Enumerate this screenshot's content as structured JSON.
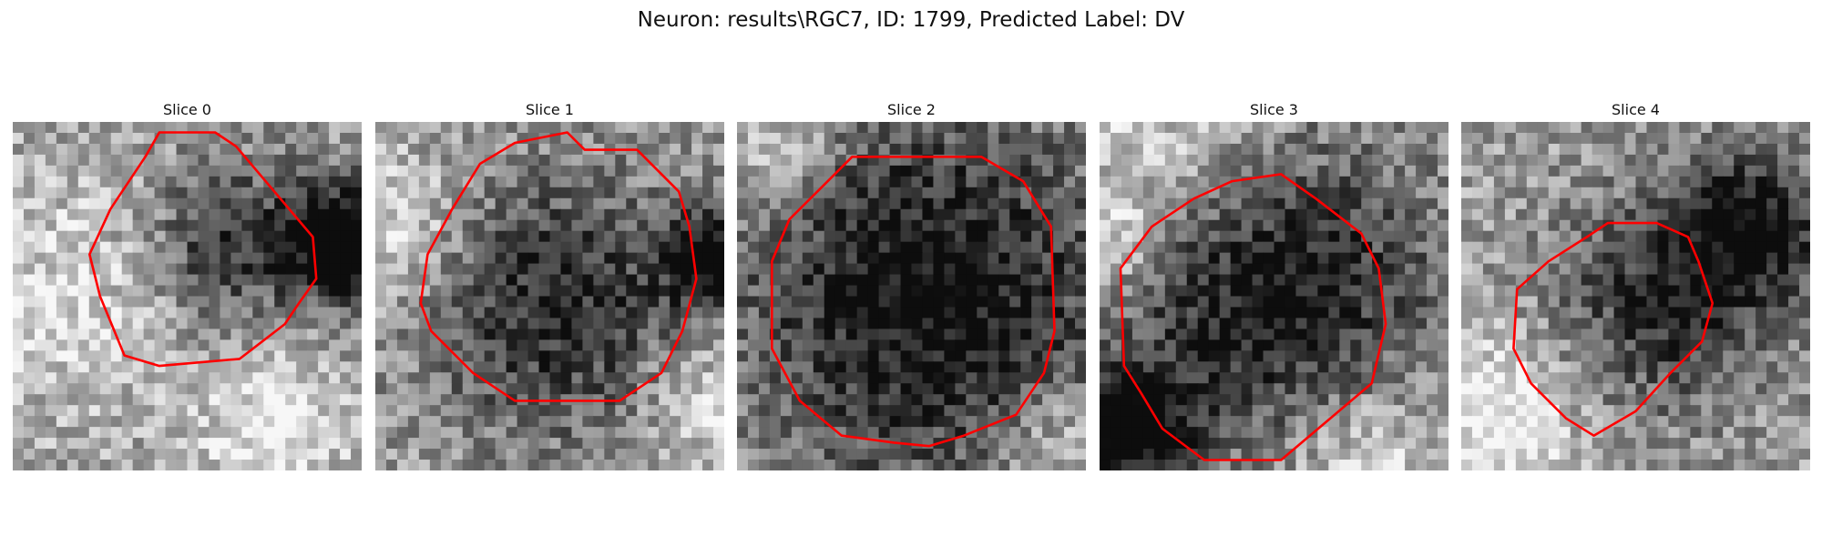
{
  "figure": {
    "title": "Neuron: results\\RGC7, ID: 1799, Predicted Label: DV",
    "contour_color": "#ff0000"
  },
  "slices": [
    {
      "title": "Slice 0",
      "seed": 11,
      "dark_spots": [
        [
          0.62,
          0.35,
          0.16,
          0.28
        ],
        [
          0.97,
          0.35,
          0.12,
          0.55
        ]
      ],
      "light_spots": [
        [
          0.15,
          0.5,
          0.25,
          0.25
        ],
        [
          0.75,
          0.88,
          0.15,
          0.35
        ]
      ],
      "contour": [
        [
          0.42,
          0.03
        ],
        [
          0.58,
          0.03
        ],
        [
          0.64,
          0.07
        ],
        [
          0.86,
          0.33
        ],
        [
          0.87,
          0.45
        ],
        [
          0.82,
          0.52
        ],
        [
          0.78,
          0.58
        ],
        [
          0.65,
          0.68
        ],
        [
          0.42,
          0.7
        ],
        [
          0.32,
          0.67
        ],
        [
          0.25,
          0.5
        ],
        [
          0.22,
          0.38
        ],
        [
          0.28,
          0.25
        ],
        [
          0.38,
          0.1
        ]
      ]
    },
    {
      "title": "Slice 1",
      "seed": 23,
      "dark_spots": [
        [
          0.52,
          0.53,
          0.26,
          0.3
        ],
        [
          0.97,
          0.4,
          0.1,
          0.4
        ]
      ],
      "light_spots": [
        [
          0.05,
          0.3,
          0.15,
          0.3
        ],
        [
          0.93,
          0.8,
          0.12,
          0.3
        ]
      ],
      "contour": [
        [
          0.4,
          0.06
        ],
        [
          0.55,
          0.03
        ],
        [
          0.6,
          0.08
        ],
        [
          0.75,
          0.08
        ],
        [
          0.87,
          0.2
        ],
        [
          0.9,
          0.3
        ],
        [
          0.92,
          0.45
        ],
        [
          0.88,
          0.6
        ],
        [
          0.82,
          0.72
        ],
        [
          0.7,
          0.8
        ],
        [
          0.4,
          0.8
        ],
        [
          0.28,
          0.72
        ],
        [
          0.16,
          0.6
        ],
        [
          0.13,
          0.52
        ],
        [
          0.15,
          0.38
        ],
        [
          0.22,
          0.25
        ],
        [
          0.3,
          0.12
        ]
      ]
    },
    {
      "title": "Slice 2",
      "seed": 37,
      "dark_spots": [
        [
          0.55,
          0.5,
          0.38,
          0.38
        ]
      ],
      "light_spots": [
        [
          0.1,
          0.05,
          0.15,
          0.3
        ],
        [
          0.92,
          0.92,
          0.12,
          0.3
        ]
      ],
      "contour": [
        [
          0.33,
          0.1
        ],
        [
          0.7,
          0.1
        ],
        [
          0.82,
          0.17
        ],
        [
          0.9,
          0.3
        ],
        [
          0.91,
          0.6
        ],
        [
          0.88,
          0.72
        ],
        [
          0.8,
          0.84
        ],
        [
          0.65,
          0.9
        ],
        [
          0.55,
          0.93
        ],
        [
          0.45,
          0.92
        ],
        [
          0.3,
          0.9
        ],
        [
          0.18,
          0.8
        ],
        [
          0.1,
          0.65
        ],
        [
          0.1,
          0.4
        ],
        [
          0.15,
          0.28
        ],
        [
          0.25,
          0.18
        ]
      ]
    },
    {
      "title": "Slice 3",
      "seed": 41,
      "dark_spots": [
        [
          0.5,
          0.5,
          0.32,
          0.38
        ],
        [
          0.08,
          0.88,
          0.12,
          0.45
        ]
      ],
      "light_spots": [
        [
          0.2,
          0.05,
          0.25,
          0.3
        ],
        [
          0.75,
          0.95,
          0.18,
          0.35
        ],
        [
          0.05,
          0.35,
          0.1,
          0.3
        ]
      ],
      "contour": [
        [
          0.27,
          0.22
        ],
        [
          0.38,
          0.17
        ],
        [
          0.52,
          0.15
        ],
        [
          0.62,
          0.22
        ],
        [
          0.75,
          0.32
        ],
        [
          0.8,
          0.42
        ],
        [
          0.82,
          0.58
        ],
        [
          0.78,
          0.75
        ],
        [
          0.65,
          0.86
        ],
        [
          0.52,
          0.97
        ],
        [
          0.3,
          0.97
        ],
        [
          0.18,
          0.88
        ],
        [
          0.12,
          0.78
        ],
        [
          0.07,
          0.7
        ],
        [
          0.06,
          0.42
        ],
        [
          0.15,
          0.3
        ]
      ]
    },
    {
      "title": "Slice 4",
      "seed": 53,
      "dark_spots": [
        [
          0.58,
          0.52,
          0.22,
          0.28
        ],
        [
          0.85,
          0.3,
          0.15,
          0.35
        ]
      ],
      "light_spots": [
        [
          0.1,
          0.85,
          0.18,
          0.4
        ]
      ],
      "contour": [
        [
          0.36,
          0.33
        ],
        [
          0.42,
          0.29
        ],
        [
          0.56,
          0.29
        ],
        [
          0.65,
          0.33
        ],
        [
          0.68,
          0.4
        ],
        [
          0.72,
          0.52
        ],
        [
          0.69,
          0.63
        ],
        [
          0.6,
          0.72
        ],
        [
          0.5,
          0.83
        ],
        [
          0.38,
          0.9
        ],
        [
          0.3,
          0.85
        ],
        [
          0.2,
          0.75
        ],
        [
          0.15,
          0.65
        ],
        [
          0.16,
          0.48
        ],
        [
          0.25,
          0.4
        ]
      ]
    }
  ]
}
